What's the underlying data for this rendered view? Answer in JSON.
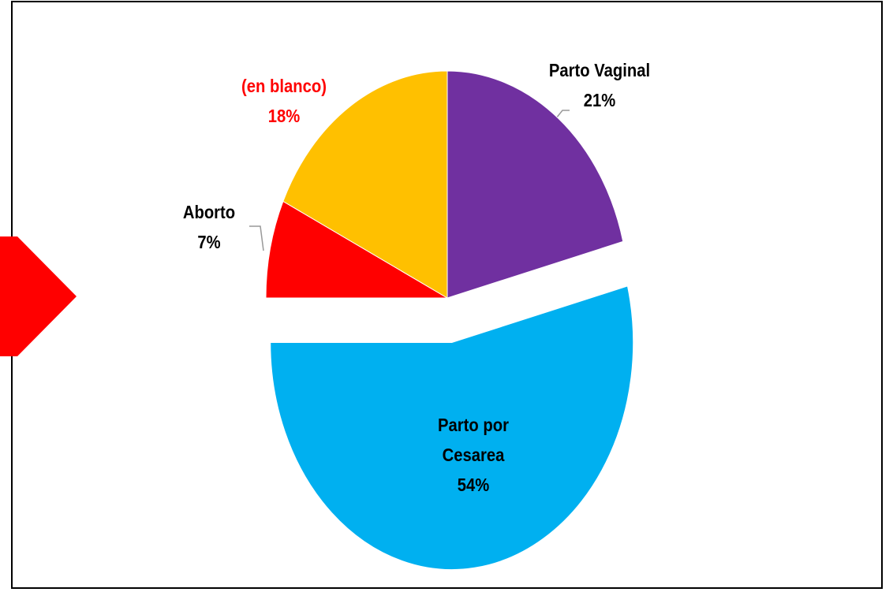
{
  "chart_data": {
    "type": "pie",
    "categories": [
      "Parto Vaginal",
      "Parto por Cesarea",
      "Aborto",
      "(en blanco)"
    ],
    "values": [
      21,
      54,
      7,
      18
    ],
    "value_labels": [
      "21%",
      "54%",
      "7%",
      "18%"
    ],
    "colors": [
      "#7030a0",
      "#00b0f0",
      "#ff0000",
      "#ffc000"
    ],
    "label_colors": [
      "#000000",
      "#000000",
      "#000000",
      "#ff0000"
    ],
    "explode": [
      false,
      true,
      false,
      false
    ]
  }
}
